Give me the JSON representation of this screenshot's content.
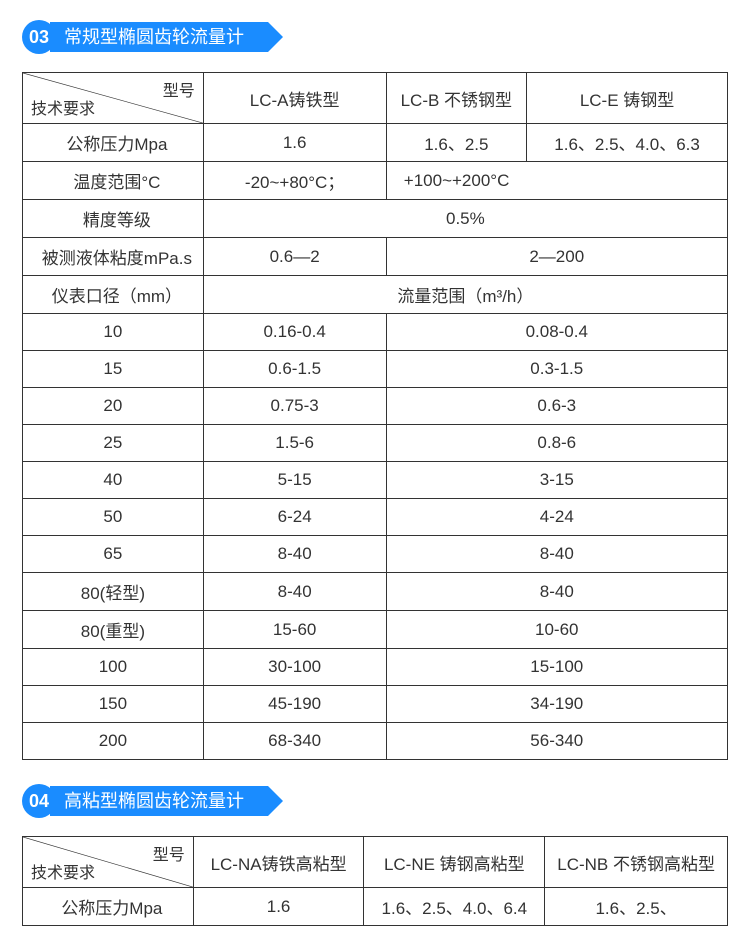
{
  "colors": {
    "accent": "#1a8cff",
    "border": "#333333",
    "text": "#333333",
    "bg": "#ffffff"
  },
  "section1": {
    "badge": "03",
    "title": "常规型椭圆齿轮流量计",
    "diag_top": "型号",
    "diag_bottom": "技术要求",
    "cols": [
      "LC-A铸铁型",
      "LC-B 不锈钢型",
      "LC-E 铸钢型"
    ],
    "rows": {
      "pressure_label": "公称压力Mpa",
      "pressure": [
        "1.6",
        "1.6、2.5",
        "1.6、2.5、4.0、6.3"
      ],
      "temp_label": "温度范围°C",
      "temp_a": "-20~+80°C；",
      "temp_b": "+100~+200°C",
      "accuracy_label": "精度等级",
      "accuracy": "0.5%",
      "visc_label": "被测液体粘度mPa.s",
      "visc_a": "0.6—2",
      "visc_b": "2—200",
      "diam_label": "仪表口径（mm）",
      "flow_header": "流量范围（m³/h）",
      "flow": [
        {
          "d": "10",
          "a": "0.16-0.4",
          "b": "0.08-0.4"
        },
        {
          "d": "15",
          "a": "0.6-1.5",
          "b": "0.3-1.5"
        },
        {
          "d": "20",
          "a": "0.75-3",
          "b": "0.6-3"
        },
        {
          "d": "25",
          "a": "1.5-6",
          "b": "0.8-6"
        },
        {
          "d": "40",
          "a": "5-15",
          "b": "3-15"
        },
        {
          "d": "50",
          "a": "6-24",
          "b": "4-24"
        },
        {
          "d": "65",
          "a": "8-40",
          "b": "8-40"
        },
        {
          "d": "80(轻型)",
          "a": "8-40",
          "b": "8-40"
        },
        {
          "d": "80(重型)",
          "a": "15-60",
          "b": "10-60"
        },
        {
          "d": "100",
          "a": "30-100",
          "b": "15-100"
        },
        {
          "d": "150",
          "a": "45-190",
          "b": "34-190"
        },
        {
          "d": "200",
          "a": "68-340",
          "b": "56-340"
        }
      ]
    }
  },
  "section2": {
    "badge": "04",
    "title": "高粘型椭圆齿轮流量计",
    "diag_top": "型号",
    "diag_bottom": "技术要求",
    "cols": [
      "LC-NA铸铁高粘型",
      "LC-NE 铸钢高粘型",
      "LC-NB 不锈钢高粘型"
    ],
    "rows": {
      "pressure_label": "公称压力Mpa",
      "pressure": [
        "1.6",
        "1.6、2.5、4.0、6.4",
        "1.6、2.5、"
      ]
    }
  }
}
